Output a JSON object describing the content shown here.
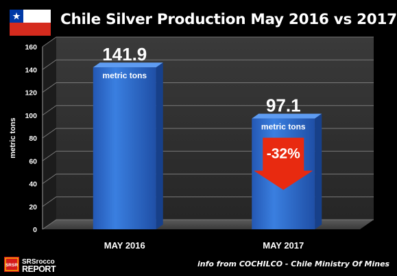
{
  "chart_data": {
    "type": "bar",
    "title": "Chile Silver Production May 2016 vs 2017",
    "categories": [
      "MAY 2016",
      "MAY 2017"
    ],
    "values": [
      141.9,
      97.1
    ],
    "value_labels": [
      "141.9",
      "97.1"
    ],
    "unit_label": "metric tons",
    "ylabel": "metric tons",
    "xlabel": "",
    "ylim": [
      0,
      160
    ],
    "yticks": [
      0,
      20,
      40,
      60,
      80,
      100,
      120,
      140,
      160
    ],
    "grid": true,
    "style": "3d",
    "annotation": {
      "text": "-32%",
      "target": "MAY 2017"
    },
    "colors": {
      "bar": "#2f6fd0",
      "arrow": "#e82a10",
      "background": "#000000",
      "wall": "#2a2a2a"
    }
  },
  "footer": {
    "logo_top": "SRSrocco",
    "logo_bottom": "REPORT",
    "logo_badge": "SRSR",
    "source": "info from COCHILCO - Chile Ministry Of Mines"
  }
}
